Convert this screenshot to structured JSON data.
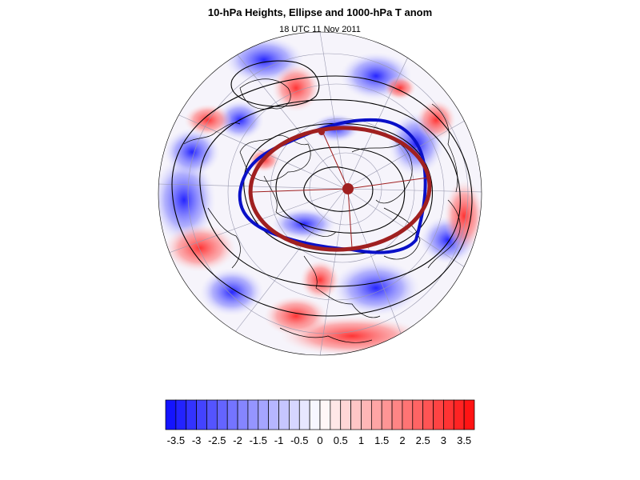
{
  "title": "10-hPa Heights, Ellipse and 1000-hPa T anom",
  "subtitle": "18 UTC 11 Nov 2011",
  "colors": {
    "background": "#ffffff",
    "height_contour": "#000000",
    "coastline": "#000000",
    "gridline": "#9a9ab0",
    "ellipse": "#a02020",
    "vortex_edge": "#0a10c8",
    "warm": "#ff0000",
    "cold": "#0000ff",
    "neutral": "#ffffff"
  },
  "colorbar": {
    "min": -3.75,
    "max": 3.75,
    "step": 0.25,
    "tick_labels": [
      "-3.5",
      "-3",
      "-2.5",
      "-2",
      "-1.5",
      "-1",
      "-0.5",
      "0",
      "0.5",
      "1",
      "1.5",
      "2",
      "2.5",
      "3",
      "3.5"
    ],
    "tick_values": [
      -3.5,
      -3,
      -2.5,
      -2,
      -1.5,
      -1,
      -0.5,
      0,
      0.5,
      1,
      1.5,
      2,
      2.5,
      3,
      3.5
    ]
  },
  "map": {
    "projection": "polar orthographic (Northern Hemisphere)",
    "features": [
      "1000-hPa temperature anomaly shading",
      "10-hPa height contours",
      "vortex ellipse",
      "vortex edge",
      "coastlines",
      "lat/lon grid"
    ]
  }
}
